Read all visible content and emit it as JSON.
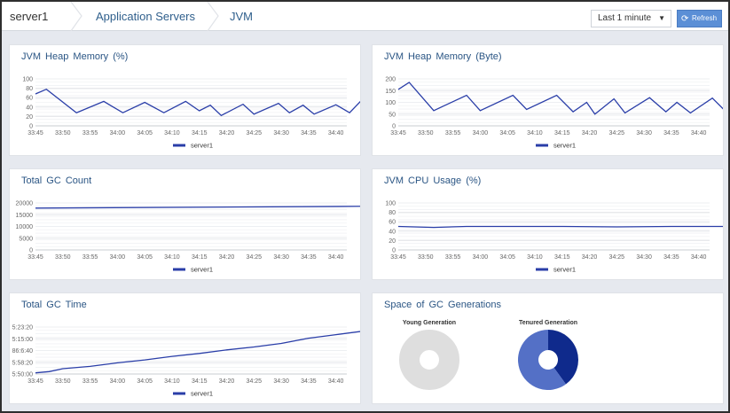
{
  "breadcrumb": {
    "server": "server1",
    "section": "Application Servers",
    "page": "JVM"
  },
  "toolbar": {
    "range_value": "Last 1 minute",
    "refresh_label": "Refresh"
  },
  "colors": {
    "series": "#2a3ea8",
    "grid": "#e4e6ea",
    "young_gen": "#dedede",
    "tenured_used": "#0f2a8c",
    "tenured_free": "#5470c6"
  },
  "chart_data": [
    {
      "id": "heap-pct",
      "type": "line",
      "title": "JVM Heap Memory (%)",
      "x": [
        "33:45",
        "33:50",
        "33:55",
        "34:00",
        "34:05",
        "34:10",
        "34:15",
        "34:20",
        "34:25",
        "34:30",
        "34:35",
        "34:40"
      ],
      "yticks": [
        0,
        20,
        40,
        60,
        80,
        100
      ],
      "ylim": [
        0,
        100
      ],
      "series": [
        {
          "name": "server1",
          "points": [
            [
              0,
              68
            ],
            [
              0.4,
              78
            ],
            [
              1.5,
              28
            ],
            [
              2.5,
              52
            ],
            [
              3.2,
              28
            ],
            [
              4,
              50
            ],
            [
              4.7,
              28
            ],
            [
              5.5,
              52
            ],
            [
              6,
              32
            ],
            [
              6.4,
              44
            ],
            [
              6.8,
              22
            ],
            [
              7.6,
              46
            ],
            [
              8,
              25
            ],
            [
              8.9,
              48
            ],
            [
              9.3,
              28
            ],
            [
              9.8,
              44
            ],
            [
              10.2,
              25
            ],
            [
              11,
              45
            ],
            [
              11.5,
              28
            ],
            [
              11.9,
              52
            ],
            [
              12.4,
              30
            ]
          ]
        }
      ],
      "legend": "bottom"
    },
    {
      "id": "heap-byte",
      "type": "line",
      "title": "JVM Heap Memory (Byte)",
      "x": [
        "33:45",
        "33:50",
        "33:55",
        "34:00",
        "34:05",
        "34:10",
        "34:15",
        "34:20",
        "34:25",
        "34:30",
        "34:35",
        "34:40"
      ],
      "yticks": [
        0,
        50,
        100,
        150,
        200
      ],
      "ylim": [
        0,
        200
      ],
      "series": [
        {
          "name": "server1",
          "points": [
            [
              0,
              155
            ],
            [
              0.4,
              185
            ],
            [
              1.3,
              65
            ],
            [
              2.5,
              130
            ],
            [
              3,
              65
            ],
            [
              4.2,
              130
            ],
            [
              4.7,
              70
            ],
            [
              5.8,
              130
            ],
            [
              6.4,
              60
            ],
            [
              6.9,
              100
            ],
            [
              7.2,
              50
            ],
            [
              7.9,
              115
            ],
            [
              8.3,
              55
            ],
            [
              9.2,
              120
            ],
            [
              9.8,
              60
            ],
            [
              10.2,
              100
            ],
            [
              10.7,
              55
            ],
            [
              11.5,
              118
            ],
            [
              12,
              60
            ],
            [
              12.7,
              125
            ],
            [
              13.1,
              70
            ]
          ]
        }
      ],
      "legend": "bottom"
    },
    {
      "id": "gc-count",
      "type": "line",
      "title": "Total GC Count",
      "x": [
        "33:45",
        "33:50",
        "33:55",
        "34:00",
        "34:05",
        "34:10",
        "34:15",
        "34:20",
        "34:25",
        "34:30",
        "34:35",
        "34:40"
      ],
      "yticks": [
        0,
        5000,
        10000,
        15000,
        20000
      ],
      "ylim": [
        0,
        20000
      ],
      "series": [
        {
          "name": "server1",
          "points": [
            [
              0,
              17800
            ],
            [
              12.4,
              18600
            ]
          ]
        }
      ],
      "legend": "bottom"
    },
    {
      "id": "cpu-usage",
      "type": "line",
      "title": "JVM CPU Usage (%)",
      "x": [
        "33:45",
        "33:50",
        "33:55",
        "34:00",
        "34:05",
        "34:10",
        "34:15",
        "34:20",
        "34:25",
        "34:30",
        "34:35",
        "34:40"
      ],
      "yticks": [
        0,
        20,
        40,
        60,
        80,
        100
      ],
      "ylim": [
        0,
        100
      ],
      "series": [
        {
          "name": "server1",
          "points": [
            [
              0,
              50
            ],
            [
              1.3,
              48
            ],
            [
              2.5,
              50
            ],
            [
              6,
              50
            ],
            [
              8,
              49
            ],
            [
              10,
              50
            ],
            [
              12.4,
              50
            ]
          ]
        }
      ],
      "legend": "bottom"
    },
    {
      "id": "gc-time",
      "type": "line",
      "title": "Total GC Time",
      "x": [
        "33:45",
        "33:50",
        "33:55",
        "34:00",
        "34:05",
        "34:10",
        "34:15",
        "34:20",
        "34:25",
        "34:30",
        "34:35",
        "34:40"
      ],
      "ytick_labels": [
        "5:50:00",
        "5:58:20",
        "86:6:40",
        "5:15:00",
        "5:23:20"
      ],
      "ylim": [
        0,
        4
      ],
      "series": [
        {
          "name": "server1",
          "points": [
            [
              0,
              0.1
            ],
            [
              0.5,
              0.2
            ],
            [
              1,
              0.45
            ],
            [
              2,
              0.65
            ],
            [
              3,
              0.95
            ],
            [
              4,
              1.2
            ],
            [
              5,
              1.5
            ],
            [
              6,
              1.75
            ],
            [
              7,
              2.05
            ],
            [
              8,
              2.3
            ],
            [
              9,
              2.6
            ],
            [
              10,
              3.05
            ],
            [
              11,
              3.35
            ],
            [
              12,
              3.65
            ],
            [
              12.4,
              3.75
            ]
          ]
        }
      ],
      "legend": "bottom"
    },
    {
      "id": "gc-generations",
      "type": "pie",
      "title": "Space of GC Generations",
      "pies": [
        {
          "label": "Young Generation",
          "slices": [
            {
              "value": 100,
              "color": "#dedede"
            }
          ]
        },
        {
          "label": "Tenured Generation",
          "slices": [
            {
              "value": 40,
              "color": "#0f2a8c"
            },
            {
              "value": 60,
              "color": "#5470c6"
            }
          ]
        }
      ]
    }
  ]
}
